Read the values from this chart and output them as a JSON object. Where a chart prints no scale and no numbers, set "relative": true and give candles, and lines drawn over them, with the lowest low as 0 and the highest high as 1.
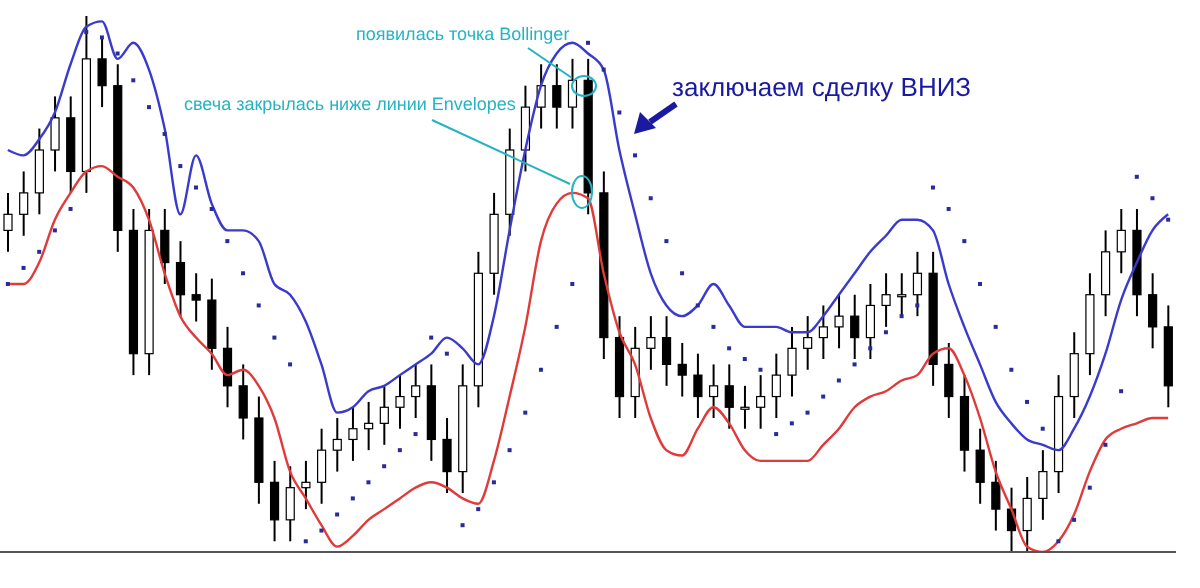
{
  "chart_data": {
    "type": "candlestick",
    "relative": true,
    "color": "#000000",
    "categories": [
      null,
      null,
      null,
      null,
      null,
      null,
      null,
      null,
      null,
      null,
      null,
      null,
      null,
      null,
      null,
      null,
      null,
      null,
      null,
      null,
      null,
      null,
      null,
      null,
      null,
      null,
      null,
      null,
      null,
      null,
      null,
      null,
      null,
      null,
      null,
      null,
      null,
      null,
      null,
      null,
      null,
      null,
      null,
      null,
      null,
      null,
      null,
      null,
      null,
      null,
      null,
      null,
      null,
      null,
      null,
      null,
      null,
      null,
      null,
      null,
      null,
      null,
      null,
      null,
      null,
      null,
      null,
      null,
      null,
      null,
      null,
      null,
      null,
      null,
      null
    ],
    "ohlc": [
      [
        0.6,
        0.67,
        0.56,
        0.63
      ],
      [
        0.63,
        0.71,
        0.59,
        0.67
      ],
      [
        0.67,
        0.79,
        0.63,
        0.75
      ],
      [
        0.75,
        0.85,
        0.71,
        0.81
      ],
      [
        0.81,
        0.85,
        0.67,
        0.71
      ],
      [
        0.71,
        1.0,
        0.67,
        0.92
      ],
      [
        0.92,
        0.96,
        0.83,
        0.87
      ],
      [
        0.87,
        0.91,
        0.56,
        0.6
      ],
      [
        0.6,
        0.64,
        0.33,
        0.37
      ],
      [
        0.37,
        0.64,
        0.33,
        0.6
      ],
      [
        0.6,
        0.64,
        0.5,
        0.54
      ],
      [
        0.54,
        0.58,
        0.44,
        0.48
      ],
      [
        0.48,
        0.52,
        0.43,
        0.47
      ],
      [
        0.47,
        0.51,
        0.34,
        0.38
      ],
      [
        0.38,
        0.42,
        0.27,
        0.31
      ],
      [
        0.31,
        0.35,
        0.21,
        0.25
      ],
      [
        0.25,
        0.29,
        0.09,
        0.13
      ],
      [
        0.13,
        0.17,
        0.02,
        0.06
      ],
      [
        0.06,
        0.16,
        0.02,
        0.12
      ],
      [
        0.12,
        0.17,
        0.08,
        0.13
      ],
      [
        0.13,
        0.23,
        0.09,
        0.19
      ],
      [
        0.19,
        0.25,
        0.15,
        0.21
      ],
      [
        0.21,
        0.27,
        0.17,
        0.23
      ],
      [
        0.23,
        0.28,
        0.19,
        0.24
      ],
      [
        0.24,
        0.31,
        0.2,
        0.27
      ],
      [
        0.27,
        0.33,
        0.23,
        0.29
      ],
      [
        0.29,
        0.35,
        0.25,
        0.31
      ],
      [
        0.31,
        0.35,
        0.17,
        0.21
      ],
      [
        0.21,
        0.25,
        0.11,
        0.15
      ],
      [
        0.15,
        0.35,
        0.11,
        0.31
      ],
      [
        0.31,
        0.56,
        0.27,
        0.52
      ],
      [
        0.52,
        0.67,
        0.48,
        0.63
      ],
      [
        0.63,
        0.79,
        0.59,
        0.75
      ],
      [
        0.75,
        0.87,
        0.71,
        0.83
      ],
      [
        0.83,
        0.91,
        0.79,
        0.87
      ],
      [
        0.87,
        0.91,
        0.79,
        0.83
      ],
      [
        0.83,
        0.92,
        0.79,
        0.88
      ],
      [
        0.88,
        0.92,
        0.63,
        0.67
      ],
      [
        0.67,
        0.71,
        0.36,
        0.4
      ],
      [
        0.4,
        0.44,
        0.25,
        0.29
      ],
      [
        0.29,
        0.42,
        0.25,
        0.38
      ],
      [
        0.38,
        0.44,
        0.34,
        0.4
      ],
      [
        0.4,
        0.44,
        0.31,
        0.35
      ],
      [
        0.35,
        0.39,
        0.29,
        0.33
      ],
      [
        0.33,
        0.37,
        0.25,
        0.29
      ],
      [
        0.29,
        0.35,
        0.25,
        0.31
      ],
      [
        0.31,
        0.35,
        0.23,
        0.27
      ],
      [
        0.27,
        0.31,
        0.23,
        0.27
      ],
      [
        0.27,
        0.33,
        0.23,
        0.29
      ],
      [
        0.29,
        0.37,
        0.25,
        0.33
      ],
      [
        0.33,
        0.42,
        0.29,
        0.38
      ],
      [
        0.38,
        0.44,
        0.34,
        0.4
      ],
      [
        0.4,
        0.46,
        0.36,
        0.42
      ],
      [
        0.42,
        0.48,
        0.38,
        0.44
      ],
      [
        0.44,
        0.48,
        0.36,
        0.4
      ],
      [
        0.4,
        0.5,
        0.36,
        0.46
      ],
      [
        0.46,
        0.52,
        0.42,
        0.48
      ],
      [
        0.48,
        0.52,
        0.44,
        0.48
      ],
      [
        0.48,
        0.56,
        0.44,
        0.52
      ],
      [
        0.52,
        0.56,
        0.31,
        0.35
      ],
      [
        0.35,
        0.39,
        0.25,
        0.29
      ],
      [
        0.29,
        0.33,
        0.15,
        0.19
      ],
      [
        0.19,
        0.23,
        0.09,
        0.13
      ],
      [
        0.13,
        0.17,
        0.04,
        0.08
      ],
      [
        0.08,
        0.12,
        0.0,
        0.04
      ],
      [
        0.04,
        0.14,
        0.0,
        0.1
      ],
      [
        0.1,
        0.19,
        0.06,
        0.15
      ],
      [
        0.15,
        0.33,
        0.11,
        0.29
      ],
      [
        0.29,
        0.41,
        0.25,
        0.37
      ],
      [
        0.37,
        0.52,
        0.33,
        0.48
      ],
      [
        0.48,
        0.6,
        0.44,
        0.56
      ],
      [
        0.56,
        0.64,
        0.52,
        0.6
      ],
      [
        0.6,
        0.64,
        0.44,
        0.48
      ],
      [
        0.48,
        0.52,
        0.38,
        0.42
      ],
      [
        0.42,
        0.46,
        0.27,
        0.31
      ]
    ],
    "series": [
      {
        "type": "line",
        "color": "#3a3acc",
        "values": [
          0.75,
          0.74,
          0.77,
          0.82,
          0.91,
          0.98,
          0.99,
          0.92,
          0.95,
          0.9,
          0.79,
          0.63,
          0.74,
          0.65,
          0.6,
          0.6,
          0.58,
          0.5,
          0.48,
          0.43,
          0.35,
          0.26,
          0.27,
          0.3,
          0.31,
          0.33,
          0.35,
          0.37,
          0.4,
          0.38,
          0.35,
          0.44,
          0.6,
          0.75,
          0.87,
          0.93,
          0.95,
          0.93,
          0.9,
          0.75,
          0.63,
          0.52,
          0.46,
          0.44,
          0.46,
          0.5,
          0.46,
          0.42,
          0.42,
          0.42,
          0.41,
          0.41,
          0.44,
          0.48,
          0.52,
          0.56,
          0.59,
          0.62,
          0.62,
          0.6,
          0.5,
          0.42,
          0.35,
          0.28,
          0.24,
          0.21,
          0.2,
          0.19,
          0.23,
          0.29,
          0.37,
          0.47,
          0.54,
          0.6,
          0.63
        ]
      },
      {
        "type": "line",
        "color": "#e03a3a",
        "values": [
          0.5,
          0.5,
          0.54,
          0.62,
          0.67,
          0.71,
          0.72,
          0.7,
          0.68,
          0.62,
          0.52,
          0.44,
          0.4,
          0.37,
          0.33,
          0.34,
          0.31,
          0.25,
          0.15,
          0.1,
          0.05,
          0.01,
          0.03,
          0.06,
          0.08,
          0.1,
          0.12,
          0.13,
          0.12,
          0.1,
          0.09,
          0.17,
          0.29,
          0.42,
          0.58,
          0.65,
          0.67,
          0.66,
          0.52,
          0.41,
          0.35,
          0.25,
          0.19,
          0.18,
          0.23,
          0.27,
          0.24,
          0.19,
          0.17,
          0.17,
          0.17,
          0.17,
          0.2,
          0.23,
          0.27,
          0.29,
          0.3,
          0.32,
          0.33,
          0.37,
          0.38,
          0.33,
          0.25,
          0.15,
          0.08,
          0.01,
          0.0,
          0.02,
          0.07,
          0.15,
          0.21,
          0.23,
          0.24,
          0.25,
          0.25
        ]
      },
      {
        "type": "scatter",
        "marker": "square",
        "color": "#2a2a9a",
        "values": [
          0.5,
          0.53,
          0.56,
          0.6,
          0.64,
          0.97,
          0.96,
          0.93,
          0.88,
          0.83,
          0.78,
          0.72,
          0.68,
          0.64,
          0.58,
          0.52,
          0.46,
          0.4,
          0.35,
          0.02,
          0.04,
          0.07,
          0.1,
          0.13,
          0.16,
          0.19,
          0.22,
          0.4,
          0.37,
          0.05,
          0.08,
          0.13,
          0.19,
          0.26,
          0.34,
          0.42,
          0.5,
          0.95,
          0.9,
          0.82,
          0.74,
          0.66,
          0.58,
          0.52,
          0.46,
          0.42,
          0.38,
          0.36,
          0.34,
          0.22,
          0.24,
          0.26,
          0.29,
          0.32,
          0.35,
          0.38,
          0.41,
          0.44,
          0.46,
          0.68,
          0.64,
          0.58,
          0.5,
          0.42,
          0.34,
          0.28,
          0.23,
          0.02,
          0.06,
          0.12,
          0.2,
          0.3,
          0.7,
          0.66,
          0.62
        ]
      }
    ],
    "annotations": [
      "появилась точка Bollinger",
      "свеча закрылась ниже линии Envelopes",
      "заключаем сделку ВНИЗ"
    ]
  }
}
